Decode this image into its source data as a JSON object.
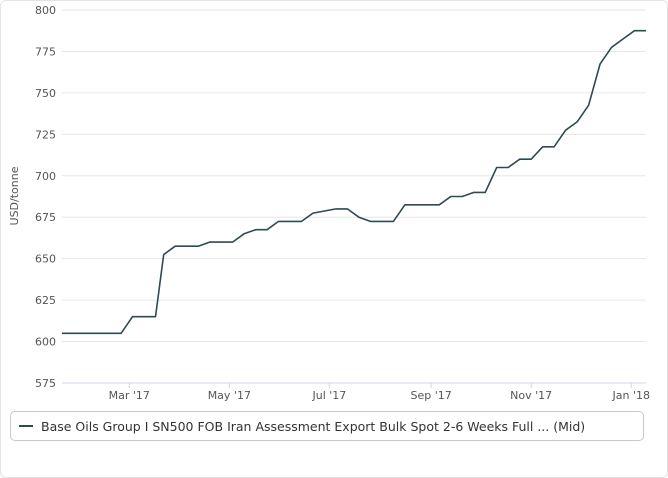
{
  "chart_data": {
    "type": "line",
    "ylabel": "USD/tonne",
    "xlabel": "",
    "title": "",
    "ylim": [
      575,
      800
    ],
    "yticks": [
      575,
      600,
      625,
      650,
      675,
      700,
      725,
      750,
      775,
      800
    ],
    "xticks": [
      {
        "label": "Mar '17",
        "date": "2017-03-01"
      },
      {
        "label": "May '17",
        "date": "2017-05-01"
      },
      {
        "label": "Jul '17",
        "date": "2017-07-01"
      },
      {
        "label": "Sep '17",
        "date": "2017-09-01"
      },
      {
        "label": "Nov '17",
        "date": "2017-11-01"
      },
      {
        "label": "Jan '18",
        "date": "2018-01-01"
      }
    ],
    "xlim": [
      "2017-01-19",
      "2018-01-10"
    ],
    "grid": "horizontal",
    "series": [
      {
        "name": "Base Oils Group I SN500 FOB Iran Assessment Export Bulk Spot 2-6 Weeks Full ... (Mid)",
        "color": "#2e4a52",
        "points": [
          [
            "2017-01-19",
            605
          ],
          [
            "2017-02-24",
            605
          ],
          [
            "2017-03-03",
            615
          ],
          [
            "2017-03-17",
            615
          ],
          [
            "2017-03-22",
            652.5
          ],
          [
            "2017-03-29",
            657.5
          ],
          [
            "2017-04-12",
            657.5
          ],
          [
            "2017-04-19",
            660
          ],
          [
            "2017-05-03",
            660
          ],
          [
            "2017-05-10",
            665
          ],
          [
            "2017-05-17",
            667.5
          ],
          [
            "2017-05-24",
            667.5
          ],
          [
            "2017-05-31",
            672.5
          ],
          [
            "2017-06-14",
            672.5
          ],
          [
            "2017-06-21",
            677.5
          ],
          [
            "2017-07-05",
            680
          ],
          [
            "2017-07-12",
            680
          ],
          [
            "2017-07-19",
            675
          ],
          [
            "2017-07-26",
            672.5
          ],
          [
            "2017-08-09",
            672.5
          ],
          [
            "2017-08-16",
            682.5
          ],
          [
            "2017-09-06",
            682.5
          ],
          [
            "2017-09-13",
            687.5
          ],
          [
            "2017-09-20",
            687.5
          ],
          [
            "2017-09-27",
            690
          ],
          [
            "2017-10-04",
            690
          ],
          [
            "2017-10-11",
            705
          ],
          [
            "2017-10-18",
            705
          ],
          [
            "2017-10-25",
            710
          ],
          [
            "2017-11-01",
            710
          ],
          [
            "2017-11-08",
            717.5
          ],
          [
            "2017-11-15",
            717.5
          ],
          [
            "2017-11-22",
            727.5
          ],
          [
            "2017-11-29",
            732.5
          ],
          [
            "2017-12-06",
            742.5
          ],
          [
            "2017-12-13",
            767.5
          ],
          [
            "2017-12-20",
            777.5
          ],
          [
            "2017-12-27",
            782.5
          ],
          [
            "2018-01-03",
            787.5
          ],
          [
            "2018-01-10",
            787.5
          ]
        ]
      }
    ],
    "legend": "bottom"
  }
}
